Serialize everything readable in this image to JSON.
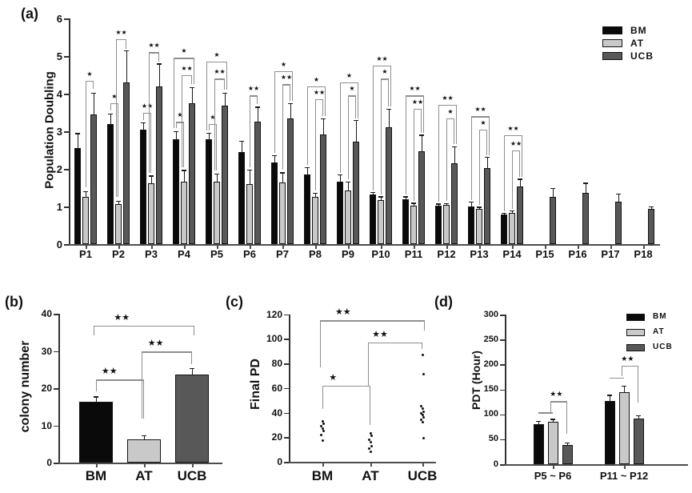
{
  "figure": {
    "background": "#ffffff"
  },
  "colors": {
    "BM": "#0a0a0a",
    "AT": "#c9c9c9",
    "UCB": "#585858",
    "axis": "#4d4d4d",
    "bracket": "#8f8f8f",
    "error": "#1a1a1a",
    "text": "#111111"
  },
  "chart_data": [
    {
      "id": "a",
      "type": "bar",
      "panel_label": "(a)",
      "title": "",
      "xlabel": "",
      "ylabel": "Population Doubling",
      "ylim": [
        0,
        6
      ],
      "yticks": [
        0,
        1,
        2,
        3,
        4,
        5,
        6
      ],
      "grid": false,
      "legend": {
        "position": "top-right",
        "entries": [
          "BM",
          "AT",
          "UCB"
        ]
      },
      "categories": [
        "P1",
        "P2",
        "P3",
        "P4",
        "P5",
        "P6",
        "P7",
        "P8",
        "P9",
        "P10",
        "P11",
        "P12",
        "P13",
        "P14",
        "P15",
        "P16",
        "P17",
        "P18"
      ],
      "series": [
        {
          "name": "BM",
          "values": [
            2.55,
            3.2,
            3.05,
            2.78,
            2.78,
            2.45,
            2.18,
            1.85,
            1.66,
            1.32,
            1.19,
            1.03,
            1.01,
            0.78,
            null,
            null,
            null,
            null
          ],
          "errors": [
            0.4,
            0.27,
            0.18,
            0.22,
            0.18,
            0.3,
            0.18,
            0.2,
            0.19,
            0.06,
            0.08,
            0.05,
            0.12,
            0.05,
            0,
            0,
            0,
            0
          ]
        },
        {
          "name": "AT",
          "values": [
            1.25,
            1.07,
            1.62,
            1.65,
            1.65,
            1.6,
            1.63,
            1.25,
            1.43,
            1.17,
            1.03,
            1.04,
            0.94,
            0.84,
            null,
            null,
            null,
            null
          ],
          "errors": [
            0.15,
            0.08,
            0.2,
            0.32,
            0.22,
            0.38,
            0.28,
            0.12,
            0.23,
            0.1,
            0.07,
            0.05,
            0.05,
            0.05,
            0,
            0,
            0,
            0
          ]
        },
        {
          "name": "UCB",
          "values": [
            3.45,
            4.3,
            4.2,
            3.75,
            3.68,
            3.25,
            3.35,
            2.92,
            2.72,
            3.1,
            2.46,
            2.15,
            2.02,
            1.54,
            1.26,
            1.36,
            1.13,
            0.94
          ],
          "errors": [
            0.57,
            0.85,
            0.6,
            0.42,
            0.35,
            0.4,
            0.4,
            0.42,
            0.58,
            0.5,
            0.45,
            0.45,
            0.3,
            0.2,
            0.23,
            0.27,
            0.22,
            0.07
          ]
        }
      ],
      "significance": [
        {
          "cat": "P1",
          "pair": [
            "AT",
            "UCB"
          ],
          "label": "*",
          "y": 4.35,
          "drop": [
            1.5,
            4.12
          ]
        },
        {
          "cat": "P2",
          "pair": [
            "BM",
            "AT"
          ],
          "label": "*",
          "y": 3.75,
          "drop": [
            3.55,
            1.25
          ]
        },
        {
          "cat": "P2",
          "pair": [
            "AT",
            "UCB"
          ],
          "label": "**",
          "y": 5.45,
          "drop": [
            1.25,
            5.2
          ]
        },
        {
          "cat": "P3",
          "pair": [
            "BM",
            "AT"
          ],
          "label": "**",
          "y": 3.5,
          "drop": [
            3.3,
            1.9
          ]
        },
        {
          "cat": "P3",
          "pair": [
            "AT",
            "UCB"
          ],
          "label": "**",
          "y": 5.1,
          "drop": [
            1.9,
            4.85
          ]
        },
        {
          "cat": "P4",
          "pair": [
            "BM",
            "AT"
          ],
          "label": "*",
          "y": 3.25,
          "drop": [
            3.08,
            2.05
          ]
        },
        {
          "cat": "P4",
          "pair": [
            "AT",
            "UCB"
          ],
          "label": "**",
          "y": 4.5,
          "drop": [
            2.05,
            4.25
          ]
        },
        {
          "cat": "P4",
          "pair": [
            "BM",
            "UCB"
          ],
          "label": "*",
          "y": 4.95,
          "drop": [
            3.08,
            4.25
          ]
        },
        {
          "cat": "P5",
          "pair": [
            "BM",
            "AT"
          ],
          "label": "*",
          "y": 3.2,
          "drop": [
            3.02,
            1.95
          ]
        },
        {
          "cat": "P5",
          "pair": [
            "AT",
            "UCB"
          ],
          "label": "**",
          "y": 4.4,
          "drop": [
            1.95,
            4.1
          ]
        },
        {
          "cat": "P5",
          "pair": [
            "BM",
            "UCB"
          ],
          "label": "*",
          "y": 4.85,
          "drop": [
            3.02,
            4.1
          ]
        },
        {
          "cat": "P6",
          "pair": [
            "AT",
            "UCB"
          ],
          "label": "**",
          "y": 3.95,
          "drop": [
            2.05,
            3.72
          ]
        },
        {
          "cat": "P7",
          "pair": [
            "AT",
            "UCB"
          ],
          "label": "**",
          "y": 4.25,
          "drop": [
            1.98,
            3.8
          ]
        },
        {
          "cat": "P7",
          "pair": [
            "BM",
            "UCB"
          ],
          "label": "*",
          "y": 4.6,
          "drop": [
            2.42,
            3.8
          ]
        },
        {
          "cat": "P8",
          "pair": [
            "AT",
            "UCB"
          ],
          "label": "**",
          "y": 3.85,
          "drop": [
            1.43,
            3.4
          ]
        },
        {
          "cat": "P8",
          "pair": [
            "BM",
            "UCB"
          ],
          "label": "*",
          "y": 4.2,
          "drop": [
            2.1,
            3.4
          ]
        },
        {
          "cat": "P9",
          "pair": [
            "AT",
            "UCB"
          ],
          "label": "*",
          "y": 3.95,
          "drop": [
            1.72,
            3.35
          ]
        },
        {
          "cat": "P9",
          "pair": [
            "BM",
            "UCB"
          ],
          "label": "*",
          "y": 4.3,
          "drop": [
            1.9,
            3.35
          ]
        },
        {
          "cat": "P10",
          "pair": [
            "AT",
            "UCB"
          ],
          "label": "*",
          "y": 4.4,
          "drop": [
            1.32,
            3.65
          ]
        },
        {
          "cat": "P10",
          "pair": [
            "BM",
            "UCB"
          ],
          "label": "**",
          "y": 4.75,
          "drop": [
            1.43,
            3.65
          ]
        },
        {
          "cat": "P11",
          "pair": [
            "AT",
            "UCB"
          ],
          "label": "**",
          "y": 3.6,
          "drop": [
            1.15,
            2.95
          ]
        },
        {
          "cat": "P11",
          "pair": [
            "BM",
            "UCB"
          ],
          "label": "**",
          "y": 3.95,
          "drop": [
            1.32,
            2.95
          ]
        },
        {
          "cat": "P12",
          "pair": [
            "AT",
            "UCB"
          ],
          "label": "*",
          "y": 3.35,
          "drop": [
            1.14,
            2.65
          ]
        },
        {
          "cat": "P12",
          "pair": [
            "BM",
            "UCB"
          ],
          "label": "**",
          "y": 3.7,
          "drop": [
            1.12,
            2.65
          ]
        },
        {
          "cat": "P13",
          "pair": [
            "AT",
            "UCB"
          ],
          "label": "*",
          "y": 3.05,
          "drop": [
            1.04,
            2.37
          ]
        },
        {
          "cat": "P13",
          "pair": [
            "BM",
            "UCB"
          ],
          "label": "**",
          "y": 3.4,
          "drop": [
            1.18,
            2.37
          ]
        },
        {
          "cat": "P14",
          "pair": [
            "AT",
            "UCB"
          ],
          "label": "**",
          "y": 2.5,
          "drop": [
            0.94,
            1.79
          ]
        },
        {
          "cat": "P14",
          "pair": [
            "BM",
            "UCB"
          ],
          "label": "**",
          "y": 2.9,
          "drop": [
            0.88,
            1.79
          ]
        }
      ]
    },
    {
      "id": "b",
      "type": "bar",
      "panel_label": "(b)",
      "title": "",
      "xlabel": "",
      "ylabel": "colony number",
      "ylim": [
        0,
        40
      ],
      "yticks": [
        0,
        10,
        20,
        30,
        40
      ],
      "grid": false,
      "categories": [
        "BM",
        "AT",
        "UCB"
      ],
      "values": [
        16.4,
        6.2,
        23.6
      ],
      "errors": [
        1.4,
        1.1,
        1.8
      ],
      "significance": [
        {
          "pair": [
            "BM",
            "AT"
          ],
          "label": "**",
          "y": 22.3,
          "drop": [
            19.2,
            11.8
          ]
        },
        {
          "pair": [
            "AT",
            "UCB"
          ],
          "label": "**",
          "y": 29.8,
          "drop": [
            11.8,
            26.5
          ]
        },
        {
          "pair": [
            "BM",
            "UCB"
          ],
          "label": "**",
          "y": 36.8,
          "drop": [
            34.2,
            34.2
          ]
        }
      ]
    },
    {
      "id": "c",
      "type": "scatter",
      "panel_label": "(c)",
      "title": "",
      "xlabel": "",
      "ylabel": "Final PD",
      "ylim": [
        0,
        120
      ],
      "yticks": [
        0,
        20,
        40,
        60,
        80,
        100,
        120
      ],
      "grid": false,
      "categories": [
        "BM",
        "AT",
        "UCB"
      ],
      "points": {
        "BM": [
          33,
          31,
          29,
          27,
          25,
          22,
          17
        ],
        "AT": [
          23,
          21,
          18,
          16,
          13,
          11,
          8
        ],
        "UCB": [
          87,
          71,
          45,
          43,
          41,
          39.5,
          38,
          36,
          34,
          32,
          19
        ]
      },
      "significance": [
        {
          "pair": [
            "BM",
            "AT"
          ],
          "label": "*",
          "y": 62,
          "drop": [
            43,
            30
          ]
        },
        {
          "pair": [
            "AT",
            "UCB"
          ],
          "label": "**",
          "y": 97,
          "drop": [
            62,
            92
          ]
        },
        {
          "pair": [
            "BM",
            "UCB"
          ],
          "label": "**",
          "y": 115,
          "drop": [
            77,
            107
          ]
        }
      ]
    },
    {
      "id": "d",
      "type": "bar",
      "panel_label": "(d)",
      "title": "",
      "xlabel": "",
      "ylabel": "PDT (Hour)",
      "ylim": [
        0,
        300
      ],
      "yticks": [
        0,
        50,
        100,
        150,
        200,
        250,
        300
      ],
      "grid": false,
      "legend": {
        "position": "top-right",
        "entries": [
          "BM",
          "AT",
          "UCB"
        ]
      },
      "categories": [
        "P5 ~ P6",
        "P11 ~ P12"
      ],
      "series": [
        {
          "name": "BM",
          "values": [
            80,
            126
          ],
          "errors": [
            7,
            13
          ]
        },
        {
          "name": "AT",
          "values": [
            85,
            145
          ],
          "errors": [
            6,
            13
          ]
        },
        {
          "name": "UCB",
          "values": [
            38,
            92
          ],
          "errors": [
            5,
            6
          ]
        }
      ],
      "significance": [
        {
          "group": "P5 ~ P6",
          "pair": [
            "BM",
            "AT"
          ],
          "label": "",
          "y": 104,
          "drop": [
            0,
            0
          ]
        },
        {
          "group": "P5 ~ P6",
          "pair": [
            "AT",
            "UCB"
          ],
          "label": "**",
          "y": 126,
          "drop": [
            104,
            61
          ]
        },
        {
          "group": "P11 ~ P12",
          "pair": [
            "BM",
            "AT"
          ],
          "label": "",
          "y": 174,
          "drop": [
            0,
            0
          ]
        },
        {
          "group": "P11 ~ P12",
          "pair": [
            "AT",
            "UCB"
          ],
          "label": "**",
          "y": 198,
          "drop": [
            176,
            124
          ]
        }
      ]
    }
  ]
}
